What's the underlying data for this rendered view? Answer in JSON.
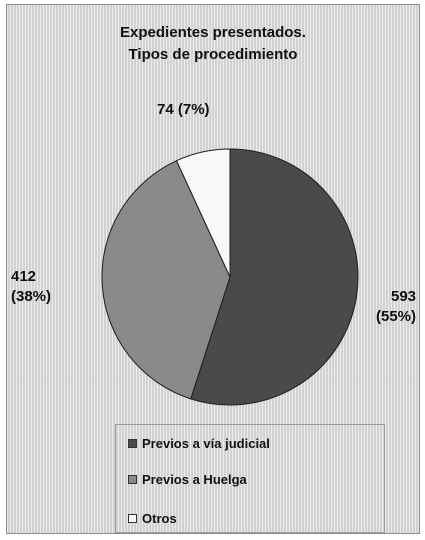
{
  "chart_data": {
    "type": "pie",
    "title": [
      "Expedientes presentados.",
      "Tipos de procedimiento"
    ],
    "categories": [
      "Previos a vía judicial",
      "Previos a Huelga",
      "Otros"
    ],
    "values": [
      593,
      412,
      74
    ],
    "percent_labels": [
      "(55%)",
      "(38%)",
      "(7%)"
    ],
    "slice_labels": {
      "otros": "74 (7%)",
      "huelga_value": "412",
      "huelga_pct": "(38%)",
      "judicial_value": "593",
      "judicial_pct": "(55%)"
    },
    "colors": [
      "#4a4a4a",
      "#8a8a8a",
      "#f8f8f8"
    ],
    "legend_position": "bottom",
    "start_angle": "12 o'clock",
    "direction": "clockwise"
  }
}
